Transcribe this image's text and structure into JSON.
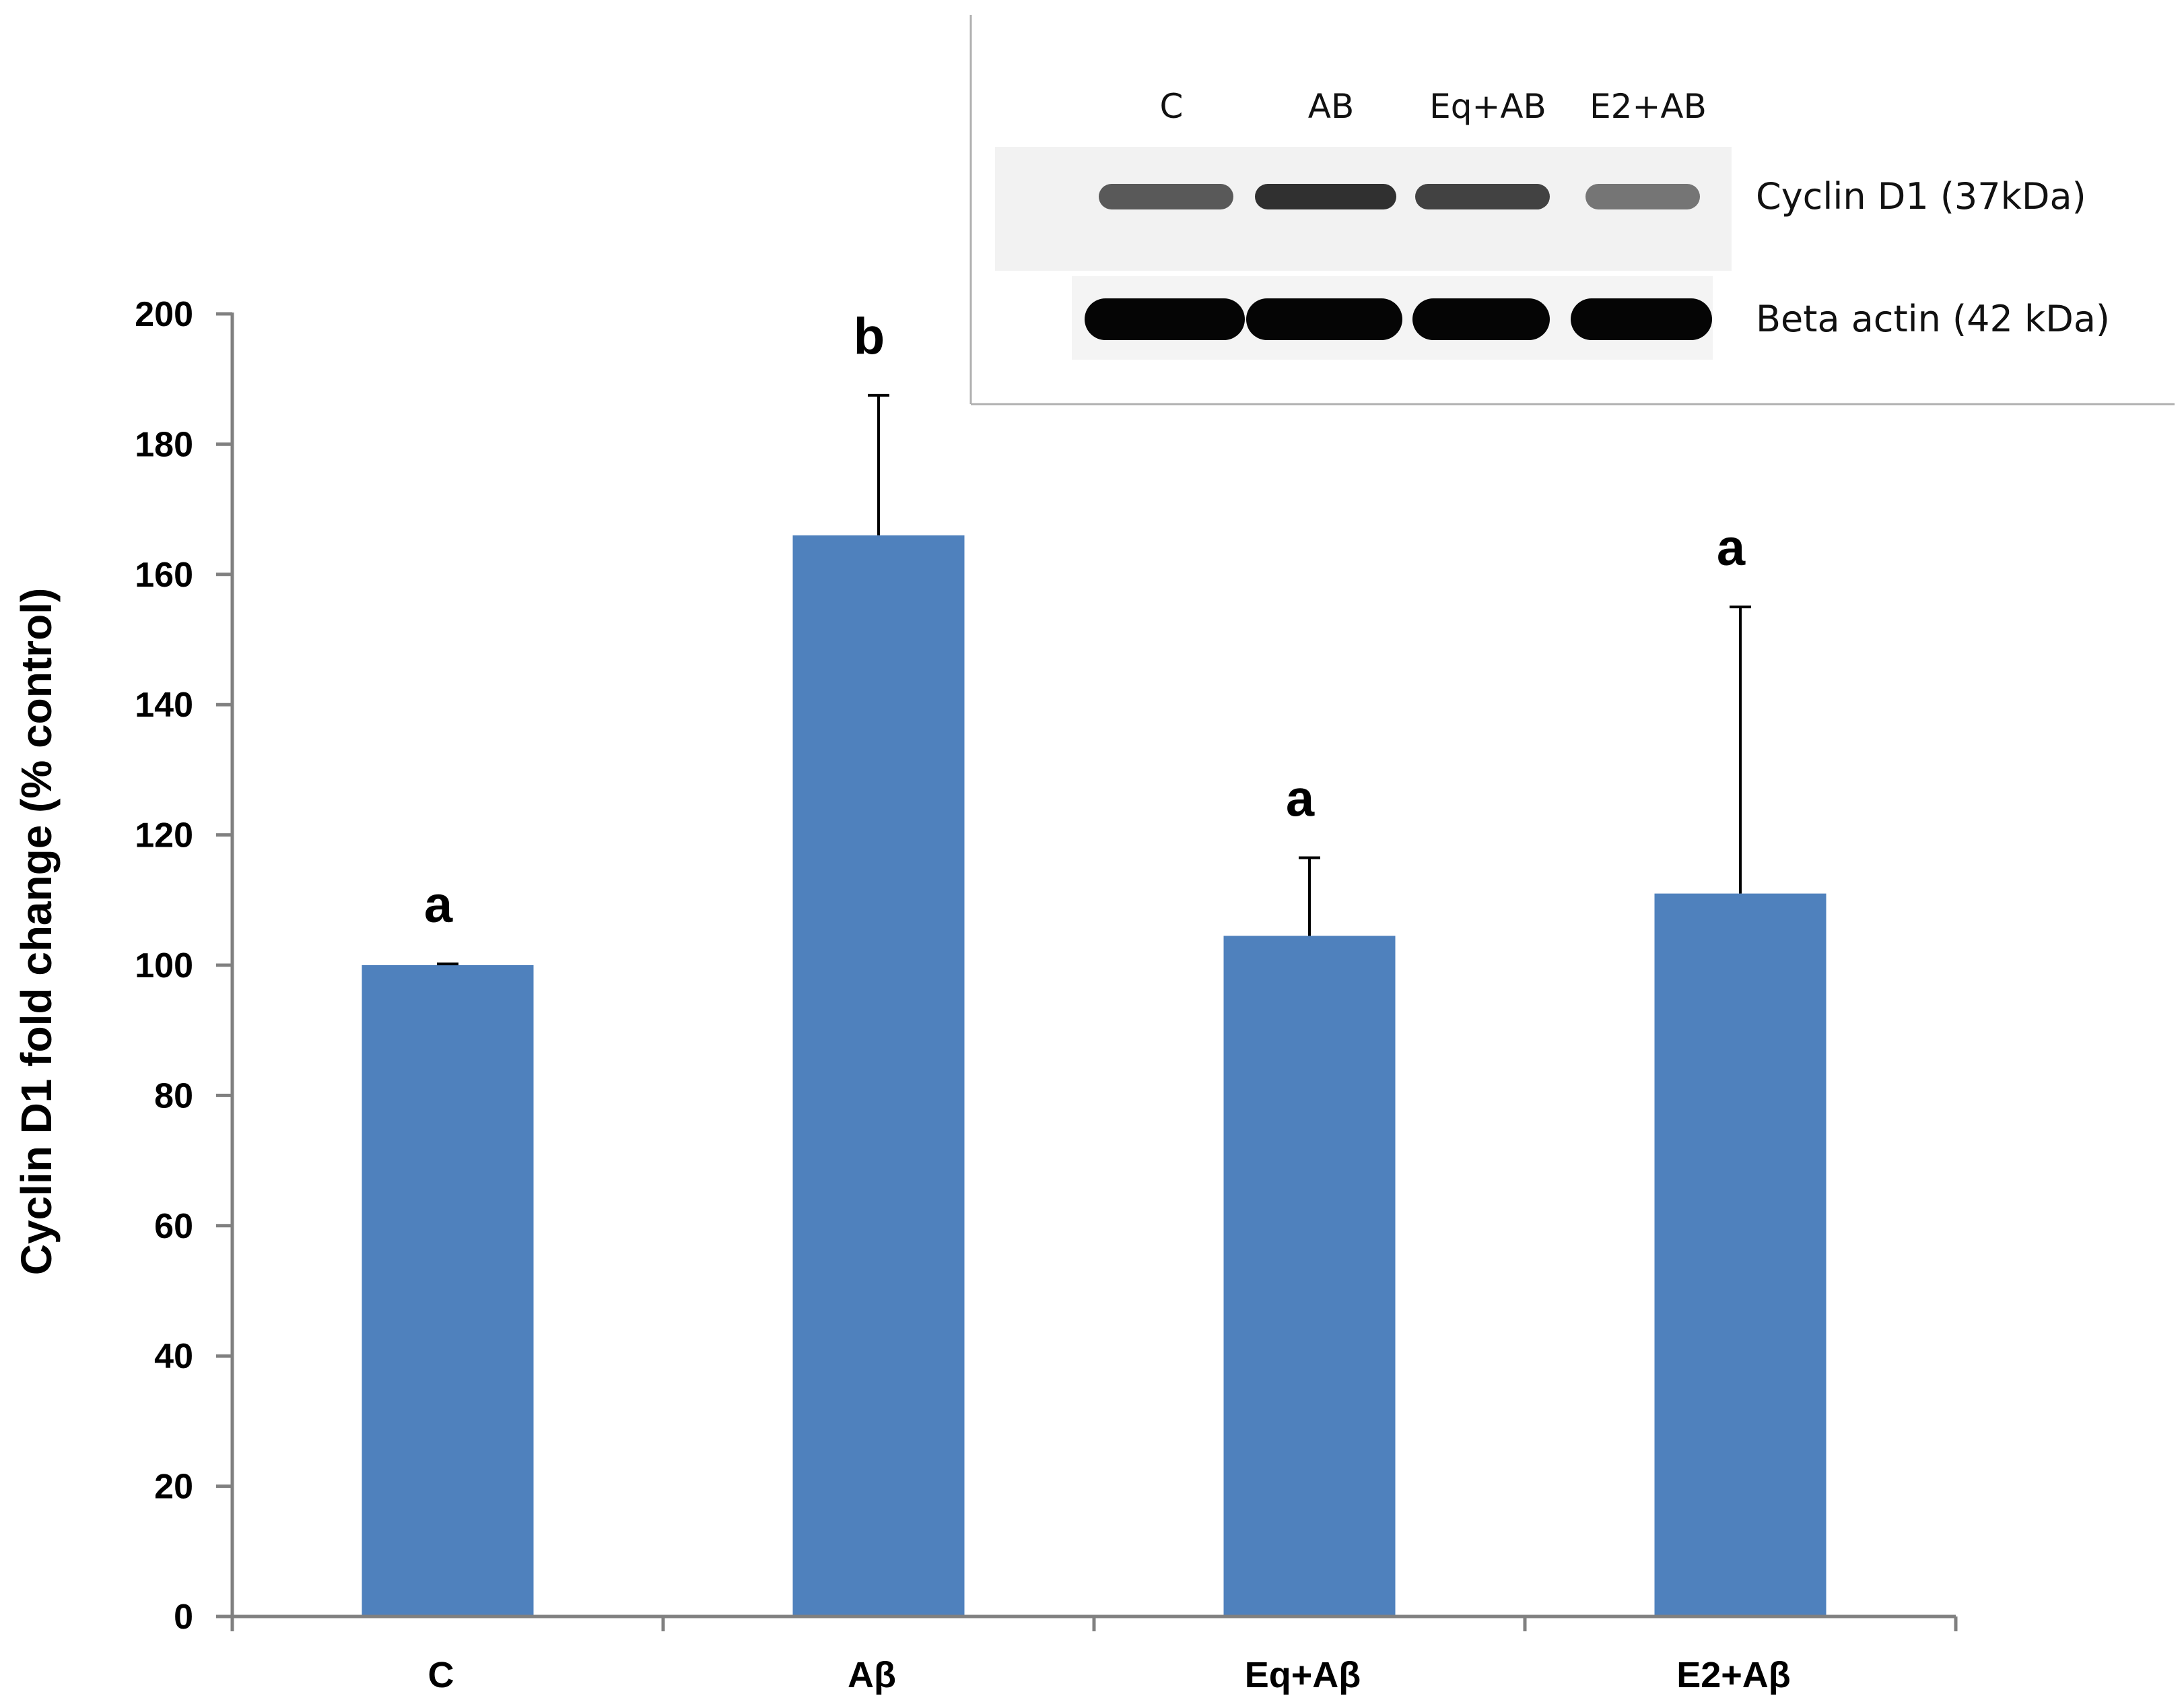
{
  "chart_data": {
    "type": "bar",
    "title": "",
    "xlabel": "",
    "ylabel": "Cyclin D1 fold change (% control)",
    "ylim": [
      0,
      200
    ],
    "yticks": [
      0,
      20,
      40,
      60,
      80,
      100,
      120,
      140,
      160,
      180,
      200
    ],
    "categories": [
      "C",
      "Aβ",
      "Eq+Aβ",
      "E2+Aβ"
    ],
    "values": [
      100,
      166,
      104.5,
      111
    ],
    "errors": [
      0.2,
      21.5,
      12,
      44
    ],
    "significance": [
      "a",
      "b",
      "a",
      "a"
    ],
    "bar_color": "#4f81bd",
    "grid": false,
    "legend": "none"
  },
  "inset_blot": {
    "lanes": [
      "C",
      "AB",
      "Eq+AB",
      "E2+AB"
    ],
    "bands": [
      {
        "label": "Cyclin D1 (37kDa)",
        "intensity": [
          0.72,
          0.9,
          0.82,
          0.6
        ]
      },
      {
        "label": "Beta actin (42 kDa)",
        "intensity": [
          1,
          1,
          1,
          1
        ]
      }
    ]
  }
}
